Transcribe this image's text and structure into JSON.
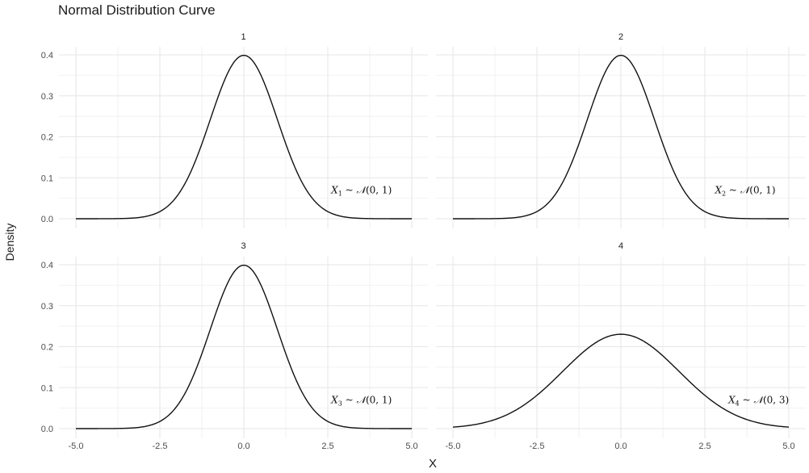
{
  "title": "Normal Distribution Curve",
  "xlabel": "X",
  "ylabel": "Density",
  "chart_data": {
    "type": "line",
    "xlim": [
      -5,
      5
    ],
    "ylim": [
      0,
      0.4
    ],
    "x_ticks": [
      "-5.0",
      "-2.5",
      "0.0",
      "2.5",
      "5.0"
    ],
    "y_ticks": [
      "0.0",
      "0.1",
      "0.2",
      "0.3",
      "0.4"
    ],
    "grid": true,
    "panels": [
      {
        "strip": "1",
        "mean": 0,
        "sd": 1,
        "annotation": {
          "sub": "1",
          "mu": "0",
          "param": "1"
        },
        "annot_x": 2.6,
        "annot_y": 0.07
      },
      {
        "strip": "2",
        "mean": 0,
        "sd": 1,
        "annotation": {
          "sub": "2",
          "mu": "0",
          "param": "1"
        },
        "annot_x": 2.8,
        "annot_y": 0.07
      },
      {
        "strip": "3",
        "mean": 0,
        "sd": 1,
        "annotation": {
          "sub": "3",
          "mu": "0",
          "param": "1"
        },
        "annot_x": 2.6,
        "annot_y": 0.07
      },
      {
        "strip": "4",
        "mean": 0,
        "sd": 1.732,
        "annotation": {
          "sub": "4",
          "mu": "0",
          "param": "3"
        },
        "annot_x": 3.2,
        "annot_y": 0.07
      }
    ],
    "line_color": "#111111"
  }
}
